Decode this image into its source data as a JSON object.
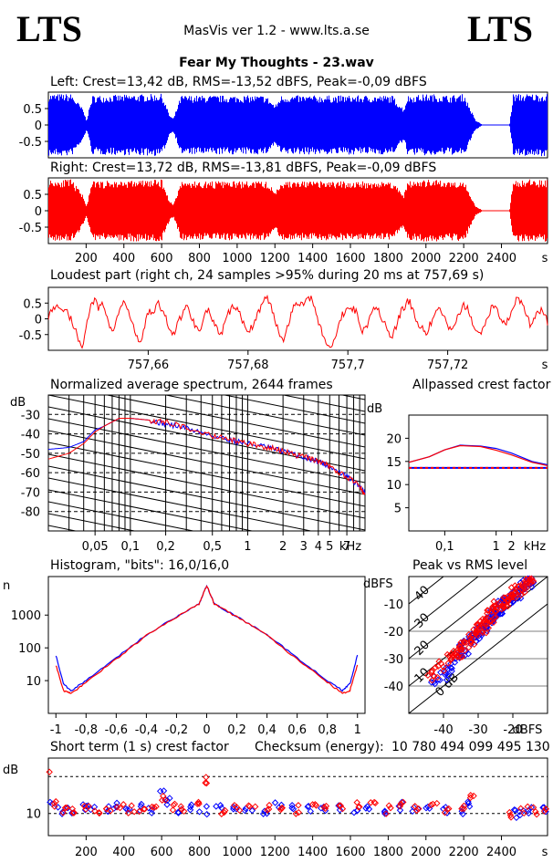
{
  "header": {
    "logo_left": "LTS",
    "logo_right": "LTS",
    "app_title": "MasVis ver 1.2 - www.lts.a.se",
    "file_title": "Fear My Thoughts - 23.wav"
  },
  "colors": {
    "left": "#0000ff",
    "right": "#ff0000",
    "grid": "#000000",
    "background": "#ffffff"
  },
  "chart_data": [
    {
      "id": "left-waveform",
      "type": "area",
      "title": "Left: Crest=13,42 dB, RMS=-13,52 dBFS, Peak=-0,09 dBFS",
      "y_ticks": [
        "0.5",
        "0",
        "-0.5"
      ],
      "ylim": [
        -1,
        1
      ],
      "x_unit": "s",
      "xlim": [
        0,
        2644
      ],
      "envelope": [
        [
          0,
          0.95
        ],
        [
          120,
          0.95
        ],
        [
          180,
          0.5
        ],
        [
          200,
          0.15
        ],
        [
          230,
          0.9
        ],
        [
          600,
          0.95
        ],
        [
          640,
          0.3
        ],
        [
          660,
          0.2
        ],
        [
          700,
          0.9
        ],
        [
          1150,
          0.9
        ],
        [
          1200,
          0.6
        ],
        [
          1230,
          0.9
        ],
        [
          1820,
          0.9
        ],
        [
          1880,
          0.5
        ],
        [
          1900,
          0.9
        ],
        [
          2020,
          0.95
        ],
        [
          2120,
          0.9
        ],
        [
          2200,
          0.95
        ],
        [
          2260,
          0.15
        ],
        [
          2300,
          0.0
        ],
        [
          2440,
          0.0
        ],
        [
          2460,
          0.95
        ],
        [
          2644,
          0.95
        ]
      ]
    },
    {
      "id": "right-waveform",
      "type": "area",
      "title": "Right: Crest=13,72 dB, RMS=-13,81 dBFS, Peak=-0,09 dBFS",
      "y_ticks": [
        "0.5",
        "0",
        "-0.5"
      ],
      "ylim": [
        -1,
        1
      ],
      "x_unit": "s",
      "x_ticks": [
        200,
        400,
        600,
        800,
        1000,
        1200,
        1400,
        1600,
        1800,
        2000,
        2200,
        2400
      ],
      "xlim": [
        0,
        2644
      ],
      "envelope": [
        [
          0,
          0.95
        ],
        [
          120,
          0.95
        ],
        [
          180,
          0.5
        ],
        [
          200,
          0.15
        ],
        [
          230,
          0.9
        ],
        [
          600,
          0.95
        ],
        [
          640,
          0.3
        ],
        [
          660,
          0.2
        ],
        [
          700,
          0.9
        ],
        [
          1150,
          0.9
        ],
        [
          1200,
          0.6
        ],
        [
          1230,
          0.9
        ],
        [
          1820,
          0.9
        ],
        [
          1880,
          0.5
        ],
        [
          1900,
          0.9
        ],
        [
          2020,
          0.95
        ],
        [
          2120,
          0.9
        ],
        [
          2200,
          0.95
        ],
        [
          2260,
          0.15
        ],
        [
          2300,
          0.0
        ],
        [
          2440,
          0.0
        ],
        [
          2460,
          0.95
        ],
        [
          2644,
          0.95
        ]
      ]
    },
    {
      "id": "loudest-part",
      "type": "line",
      "title": "Loudest part (right ch, 24 samples >95% during 20 ms at 757,69 s)",
      "y_ticks": [
        "0.5",
        "0",
        "-0.5"
      ],
      "ylim": [
        -1,
        1
      ],
      "x_ticks": [
        "757,66",
        "757,68",
        "757,7",
        "757,72"
      ],
      "x_unit": "s",
      "xlim": [
        757.64,
        757.74
      ],
      "series": [
        {
          "color": "#ff0000",
          "values": [
            0.1,
            0.3,
            0.5,
            0.2,
            0.4,
            0.1,
            -0.2,
            -0.6,
            -0.9,
            -0.3,
            0.4,
            0.6,
            0.3,
            0.5,
            0.1,
            -0.4,
            -0.2,
            0.3,
            0.6,
            0.2,
            -0.1,
            -0.6,
            -0.8,
            -0.2,
            0.3,
            0.2,
            0.5,
            0.3,
            0.0,
            -0.3,
            -0.5,
            -0.1,
            0.2,
            0.4,
            0.1,
            -0.2,
            -0.4,
            0.1,
            0.3,
            0.0,
            -0.3,
            -0.6,
            -0.2,
            0.2,
            0.4,
            0.3,
            0.0,
            -0.2,
            -0.4,
            -0.1,
            0.2,
            0.5,
            0.7,
            0.4,
            0.0,
            -0.4,
            -0.7,
            -0.2,
            0.2,
            0.6,
            0.4,
            0.5,
            0.7,
            0.6,
            0.1,
            -0.3,
            -0.7,
            -0.9,
            -0.8,
            -0.3,
            0.1,
            0.3,
            0.4,
            0.3,
            0.0,
            -0.4,
            -0.2,
            0.3,
            0.4,
            0.2,
            -0.1,
            -0.5,
            -0.6,
            -0.2,
            0.2,
            0.4,
            0.6,
            0.2,
            -0.1,
            -0.3,
            -0.5,
            -0.2,
            0.1,
            0.3,
            0.1,
            -0.1,
            -0.4,
            -0.2,
            0.2,
            0.4,
            0.3,
            -0.1,
            -0.4,
            -0.5,
            -0.2,
            0.2,
            0.4,
            0.3,
            0.0,
            -0.2,
            0.1,
            0.5,
            0.7,
            0.4,
            0.1,
            -0.2,
            0.0,
            0.3,
            0.2,
            -0.1
          ]
        }
      ]
    },
    {
      "id": "avg-spectrum",
      "type": "line",
      "title": "Normalized average spectrum, 2644 frames",
      "ylabel": "dB",
      "y_ticks": [
        "-30",
        "-40",
        "-50",
        "-60",
        "-70",
        "-80"
      ],
      "ylim": [
        -90,
        -20
      ],
      "x_ticks": [
        "0,05",
        "0,1",
        "0,2",
        "0,5",
        "1",
        "2",
        "3",
        "4",
        "5",
        "7"
      ],
      "x_unit": "kHz",
      "xlim": [
        0.02,
        10
      ],
      "series": [
        {
          "color": "#0000ff",
          "x": [
            0.02,
            0.03,
            0.04,
            0.05,
            0.06,
            0.08,
            0.1,
            0.15,
            0.2,
            0.3,
            0.5,
            0.7,
            1,
            1.5,
            2,
            3,
            4,
            5,
            7,
            9,
            10
          ],
          "values": [
            -48,
            -47,
            -44,
            -38,
            -36,
            -32,
            -32,
            -33,
            -35,
            -37,
            -41,
            -43,
            -45,
            -47,
            -49,
            -52,
            -54,
            -57,
            -62,
            -67,
            -70
          ]
        },
        {
          "color": "#ff0000",
          "x": [
            0.02,
            0.03,
            0.04,
            0.05,
            0.06,
            0.08,
            0.1,
            0.15,
            0.2,
            0.3,
            0.5,
            0.7,
            1,
            1.5,
            2,
            3,
            4,
            5,
            7,
            9,
            10
          ],
          "values": [
            -53,
            -50,
            -45,
            -39,
            -36,
            -32,
            -32,
            -33,
            -34,
            -37,
            -41,
            -43,
            -45,
            -47,
            -49,
            -52,
            -54,
            -57,
            -62,
            -67,
            -71
          ]
        }
      ]
    },
    {
      "id": "allpassed-crest",
      "type": "line",
      "title": "Allpassed crest factor",
      "ylabel": "dB",
      "y_ticks": [
        "20",
        "15",
        "10",
        "5"
      ],
      "ylim": [
        0,
        25
      ],
      "x_ticks": [
        "0,1",
        "1",
        "2"
      ],
      "x_unit": "kHz",
      "xlim": [
        0.02,
        10
      ],
      "reference_value": 13.6,
      "series": [
        {
          "color": "#0000ff",
          "x": [
            0.02,
            0.05,
            0.1,
            0.2,
            0.5,
            1,
            2,
            5,
            10
          ],
          "values": [
            14.8,
            16.0,
            17.5,
            18.5,
            18.3,
            17.8,
            16.8,
            15.0,
            14.3
          ]
        },
        {
          "color": "#ff0000",
          "x": [
            0.02,
            0.05,
            0.1,
            0.2,
            0.5,
            1,
            2,
            5,
            10
          ],
          "values": [
            14.8,
            16.0,
            17.5,
            18.4,
            18.2,
            17.4,
            16.4,
            14.8,
            14.1
          ]
        }
      ]
    },
    {
      "id": "histogram",
      "type": "line",
      "title": "Histogram, \"bits\": 16,0/16,0",
      "ylabel": "n",
      "y_ticks": [
        "1000",
        "100",
        "10"
      ],
      "y_scale": "log",
      "x_ticks": [
        "-1",
        "-0,8",
        "-0,6",
        "-0,4",
        "-0,2",
        "0",
        "0,2",
        "0,4",
        "0,6",
        "0,8",
        "1"
      ],
      "xlim": [
        -1.05,
        1.05
      ],
      "series": [
        {
          "color": "#0000ff",
          "x": [
            -1,
            -0.95,
            -0.9,
            -0.8,
            -0.6,
            -0.4,
            -0.2,
            -0.05,
            0,
            0.05,
            0.2,
            0.4,
            0.6,
            0.8,
            0.9,
            0.95,
            1
          ],
          "values": [
            60,
            8,
            5,
            10,
            50,
            250,
            900,
            2200,
            8000,
            2200,
            900,
            250,
            50,
            10,
            5,
            8,
            60
          ]
        },
        {
          "color": "#ff0000",
          "x": [
            -1,
            -0.95,
            -0.9,
            -0.8,
            -0.6,
            -0.4,
            -0.2,
            -0.05,
            0,
            0.05,
            0.2,
            0.4,
            0.6,
            0.8,
            0.9,
            0.95,
            1
          ],
          "values": [
            30,
            5,
            4,
            9,
            45,
            240,
            880,
            2200,
            8000,
            2200,
            880,
            240,
            45,
            9,
            4,
            5,
            30
          ]
        }
      ]
    },
    {
      "id": "peak-vs-rms",
      "type": "scatter",
      "title": "Peak vs RMS level",
      "ylabel": "dBFS",
      "xlabel": "dBFS",
      "y_ticks": [
        "-10",
        "-20",
        "-30",
        "-40"
      ],
      "x_ticks": [
        "-40",
        "-30",
        "-20"
      ],
      "xlim": [
        -50,
        -10
      ],
      "ylim": [
        -50,
        0
      ],
      "diagonal_labels": [
        "40",
        "30",
        "20",
        "10",
        "0 dB"
      ],
      "series": [
        {
          "color": "#0000ff",
          "x": [
            -42,
            -40,
            -38,
            -36,
            -35,
            -34,
            -33,
            -32,
            -31,
            -30,
            -29,
            -28,
            -27,
            -26,
            -25,
            -24,
            -23,
            -22,
            -21,
            -20,
            -19,
            -18,
            -17,
            -16,
            -15
          ],
          "values": [
            -38,
            -36,
            -33,
            -30,
            -27,
            -28,
            -25,
            -22,
            -22,
            -20,
            -18,
            -18,
            -15,
            -13,
            -14,
            -12,
            -10,
            -9,
            -8,
            -7,
            -6,
            -5,
            -3,
            -2,
            -1
          ]
        },
        {
          "color": "#ff0000",
          "x": [
            -43,
            -41,
            -39,
            -37,
            -35,
            -34,
            -33,
            -32,
            -31,
            -30,
            -29,
            -28,
            -27,
            -26,
            -25,
            -24,
            -23,
            -22,
            -21,
            -20,
            -19,
            -18,
            -17,
            -16,
            -15
          ],
          "values": [
            -36,
            -33,
            -30,
            -28,
            -29,
            -26,
            -24,
            -23,
            -21,
            -19,
            -19,
            -17,
            -16,
            -14,
            -12,
            -11,
            -11,
            -9,
            -8,
            -6,
            -5,
            -4,
            -3,
            -2,
            -1
          ]
        }
      ]
    },
    {
      "id": "short-term-crest",
      "type": "scatter",
      "title": "Short term (1 s) crest factor",
      "checksum_label": "Checksum (energy):",
      "checksum_value": "10 780 494 099 495 130",
      "ylabel": "dB",
      "y_ticks": [
        "10"
      ],
      "x_ticks": [
        200,
        400,
        600,
        800,
        1000,
        1200,
        1400,
        1600,
        1800,
        2000,
        2200,
        2400
      ],
      "x_unit": "s",
      "xlim": [
        0,
        2644
      ],
      "reference_lines": [
        10,
        20
      ],
      "series": [
        {
          "color": "#0000ff",
          "x": [
            10,
            60,
            120,
            180,
            230,
            300,
            360,
            420,
            480,
            540,
            600,
            640,
            700,
            760,
            820,
            900,
            980,
            1060,
            1140,
            1220,
            1300,
            1380,
            1460,
            1540,
            1620,
            1700,
            1780,
            1860,
            1940,
            2020,
            2100,
            2180,
            2220,
            2460,
            2500,
            2560,
            2620
          ],
          "values": [
            12,
            11,
            11,
            12,
            11,
            11,
            12,
            11,
            12,
            11,
            15,
            13,
            11,
            12,
            11,
            11,
            11,
            12,
            11,
            12,
            11,
            11,
            12,
            11,
            11,
            12,
            11,
            12,
            11,
            12,
            11,
            11,
            13,
            10,
            10,
            11,
            11
          ]
        },
        {
          "color": "#ff0000",
          "x": [
            5,
            40,
            80,
            140,
            200,
            260,
            320,
            380,
            440,
            500,
            560,
            620,
            660,
            720,
            780,
            840,
            920,
            1000,
            1080,
            1160,
            1240,
            1320,
            1400,
            1480,
            1560,
            1640,
            1720,
            1800,
            1880,
            1960,
            2040,
            2120,
            2200,
            2240,
            2450,
            2520,
            2580,
            2630
          ],
          "values": [
            22,
            12,
            11,
            11,
            12,
            11,
            11,
            12,
            11,
            11,
            12,
            14,
            12,
            11,
            12,
            19,
            11,
            12,
            11,
            11,
            12,
            11,
            12,
            11,
            11,
            12,
            12,
            11,
            12,
            11,
            12,
            11,
            12,
            14,
            10,
            11,
            11,
            10
          ]
        }
      ]
    }
  ]
}
